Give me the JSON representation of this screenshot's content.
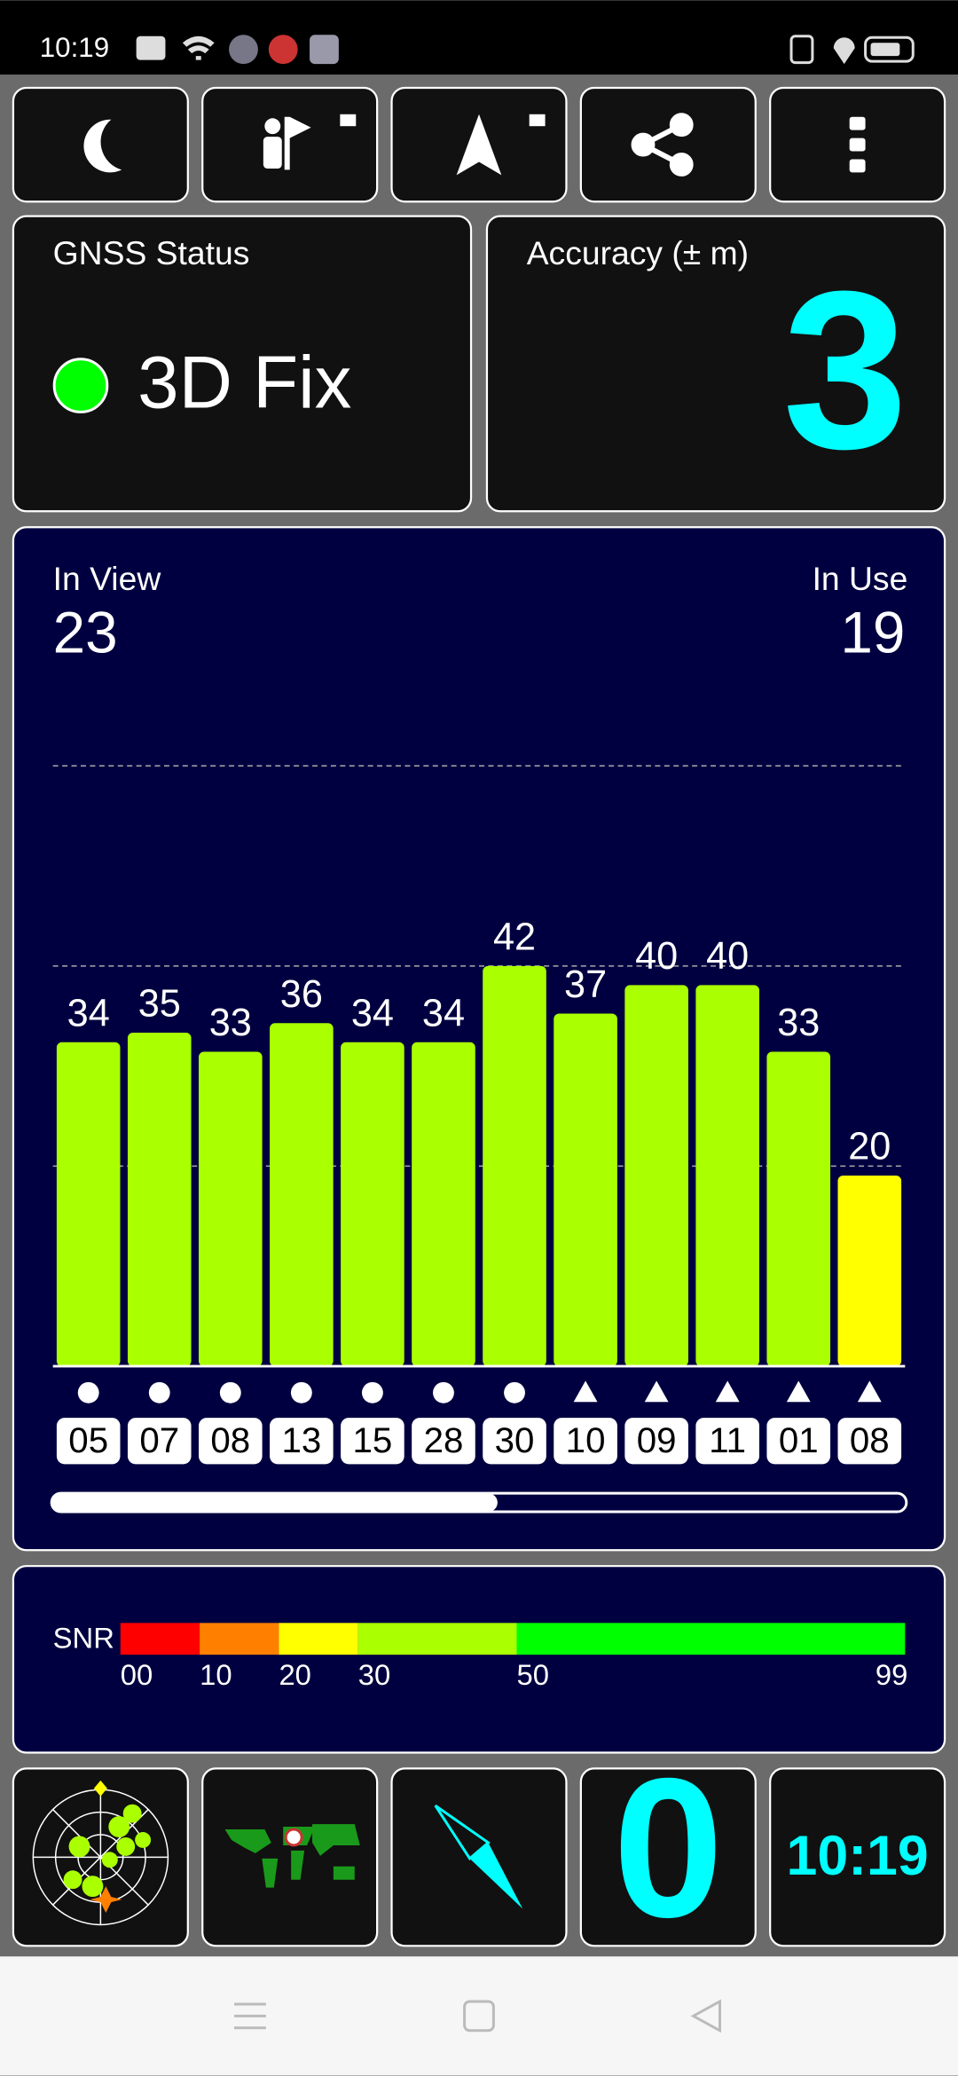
{
  "status_bar": {
    "time": "10:19"
  },
  "gnss_status": {
    "title": "GNSS Status",
    "fix": "3D Fix"
  },
  "accuracy": {
    "title": "Accuracy (± m)",
    "value": 3
  },
  "satellites": {
    "in_view_label": "In View",
    "in_view": 23,
    "in_use_label": "In Use",
    "in_use": 19
  },
  "chart_data": {
    "type": "bar",
    "categories": [
      "05",
      "07",
      "08",
      "13",
      "15",
      "28",
      "30",
      "10",
      "09",
      "11",
      "01",
      "08"
    ],
    "values": [
      34,
      35,
      33,
      36,
      34,
      34,
      42,
      37,
      40,
      40,
      33,
      20
    ],
    "bar_colors": [
      "#aaff00",
      "#aaff00",
      "#aaff00",
      "#aaff00",
      "#aaff00",
      "#aaff00",
      "#aaff00",
      "#aaff00",
      "#aaff00",
      "#aaff00",
      "#aaff00",
      "#ffff00"
    ],
    "shapes": [
      "circle",
      "circle",
      "circle",
      "circle",
      "circle",
      "circle",
      "circle",
      "triangle",
      "triangle",
      "triangle",
      "triangle",
      "triangle"
    ],
    "ylim": [
      0,
      70
    ],
    "gridlines": [
      21,
      42,
      63
    ]
  },
  "snr_scale": {
    "label": "SNR",
    "lim": [
      0,
      99
    ],
    "ticks": [
      {
        "value": 0,
        "label": "00"
      },
      10,
      20,
      30,
      50,
      99
    ],
    "colors": [
      "#ff0000",
      "#ff8000",
      "#ffff00",
      "#aaff00",
      "#00ff00"
    ]
  },
  "bottom": {
    "speed": 0,
    "clock": "10:19"
  }
}
